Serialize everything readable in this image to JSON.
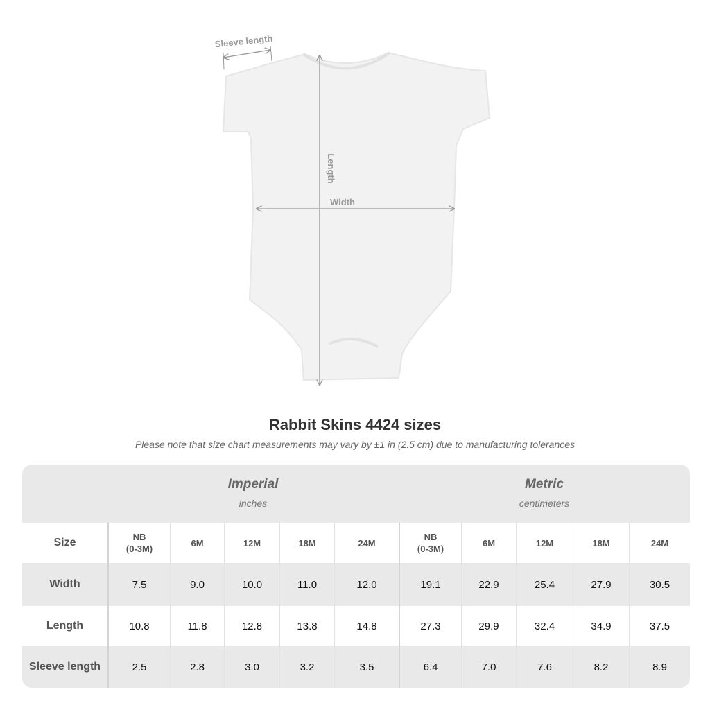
{
  "diagram": {
    "labels": {
      "sleeve": "Sleeve length",
      "length": "Length",
      "width": "Width"
    }
  },
  "title": "Rabbit Skins 4424 sizes",
  "note": "Please note that size chart measurements may vary by ±1 in (2.5 cm) due to manufacturing tolerances",
  "table": {
    "imperial": {
      "label": "Imperial",
      "unit": "inches"
    },
    "metric": {
      "label": "Metric",
      "unit": "centimeters"
    },
    "size_label": "Size",
    "sizes": [
      "NB\n(0-3M)",
      "6M",
      "12M",
      "18M",
      "24M"
    ],
    "rows": [
      {
        "label": "Width",
        "imperial": [
          "7.5",
          "9.0",
          "10.0",
          "11.0",
          "12.0"
        ],
        "metric": [
          "19.1",
          "22.9",
          "25.4",
          "27.9",
          "30.5"
        ]
      },
      {
        "label": "Length",
        "imperial": [
          "10.8",
          "11.8",
          "12.8",
          "13.8",
          "14.8"
        ],
        "metric": [
          "27.3",
          "29.9",
          "32.4",
          "34.9",
          "37.5"
        ]
      },
      {
        "label": "Sleeve length",
        "imperial": [
          "2.5",
          "2.8",
          "3.0",
          "3.2",
          "3.5"
        ],
        "metric": [
          "6.4",
          "7.0",
          "7.6",
          "8.2",
          "8.9"
        ]
      }
    ],
    "colors": {
      "header_bg": "#e9e9e9",
      "stripe_bg": "#e9e9e9",
      "row_bg": "#ffffff"
    }
  }
}
